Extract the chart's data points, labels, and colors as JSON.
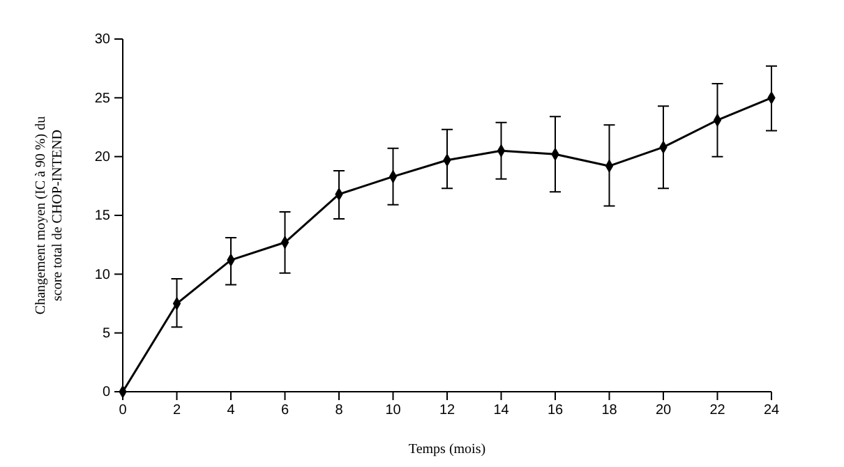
{
  "chart_data": {
    "type": "line",
    "xlabel": "Temps (mois)",
    "ylabel": "Changement moyen (IC à 90 %) du score total de CHOP-INTEND",
    "x": [
      0,
      2,
      4,
      6,
      8,
      10,
      12,
      14,
      16,
      18,
      20,
      22,
      24
    ],
    "values": [
      0,
      7.5,
      11.2,
      12.7,
      16.8,
      18.3,
      19.7,
      20.5,
      20.2,
      19.2,
      20.8,
      23.1,
      25.0
    ],
    "errors": [
      null,
      [
        5.5,
        9.6
      ],
      [
        9.1,
        13.1
      ],
      [
        10.1,
        15.3
      ],
      [
        14.7,
        18.8
      ],
      [
        15.9,
        20.7
      ],
      [
        17.3,
        22.3
      ],
      [
        18.1,
        22.9
      ],
      [
        17.0,
        23.4
      ],
      [
        15.8,
        22.7
      ],
      [
        17.3,
        24.3
      ],
      [
        20.0,
        26.2
      ],
      [
        22.2,
        27.7
      ]
    ],
    "color": "#000000",
    "marker": "diamond",
    "line_style": "solid",
    "xlim": [
      0,
      24
    ],
    "xticks": [
      0,
      2,
      4,
      6,
      8,
      10,
      12,
      14,
      16,
      18,
      20,
      22,
      24
    ],
    "ylim": [
      0,
      30
    ],
    "yticks": [
      0,
      5,
      10,
      15,
      20,
      25,
      30
    ],
    "grid": false
  }
}
